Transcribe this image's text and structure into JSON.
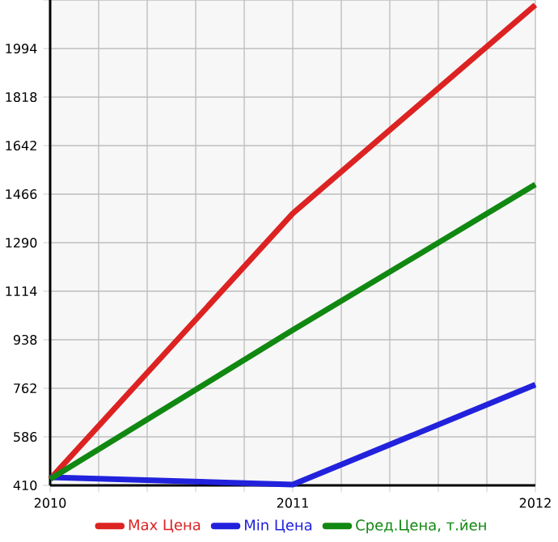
{
  "chart_data": {
    "type": "line",
    "x": [
      2010,
      2011,
      2012
    ],
    "series": [
      {
        "name": "Max Цена",
        "color": "#dd2222",
        "values": [
          433,
          1396,
          2152
        ]
      },
      {
        "name": "Min Цена",
        "color": "#2222dd",
        "values": [
          439,
          413,
          775
        ]
      },
      {
        "name": "Сред.Цена, т.йен",
        "color": "#118811",
        "values": [
          433,
          973,
          1501
        ]
      }
    ],
    "xlim": [
      2010,
      2012
    ],
    "xticks": [
      2010,
      {
        "value": 2010.2,
        "label": null
      },
      {
        "value": 2010.4,
        "label": null
      },
      {
        "value": 2010.6,
        "label": null
      },
      {
        "value": 2010.8,
        "label": null
      },
      2011,
      {
        "value": 2011.2,
        "label": null
      },
      {
        "value": 2011.4,
        "label": null
      },
      {
        "value": 2011.6,
        "label": null
      },
      {
        "value": 2011.8,
        "label": null
      },
      2012
    ],
    "ylim": [
      410,
      2170
    ],
    "yticks": [
      410,
      586,
      762,
      938,
      1114,
      1290,
      1466,
      1642,
      1818,
      1994,
      {
        "value": 2170,
        "label": null
      }
    ],
    "grid": true,
    "legend": "bottom",
    "marker": "none",
    "line_style": "solid"
  }
}
